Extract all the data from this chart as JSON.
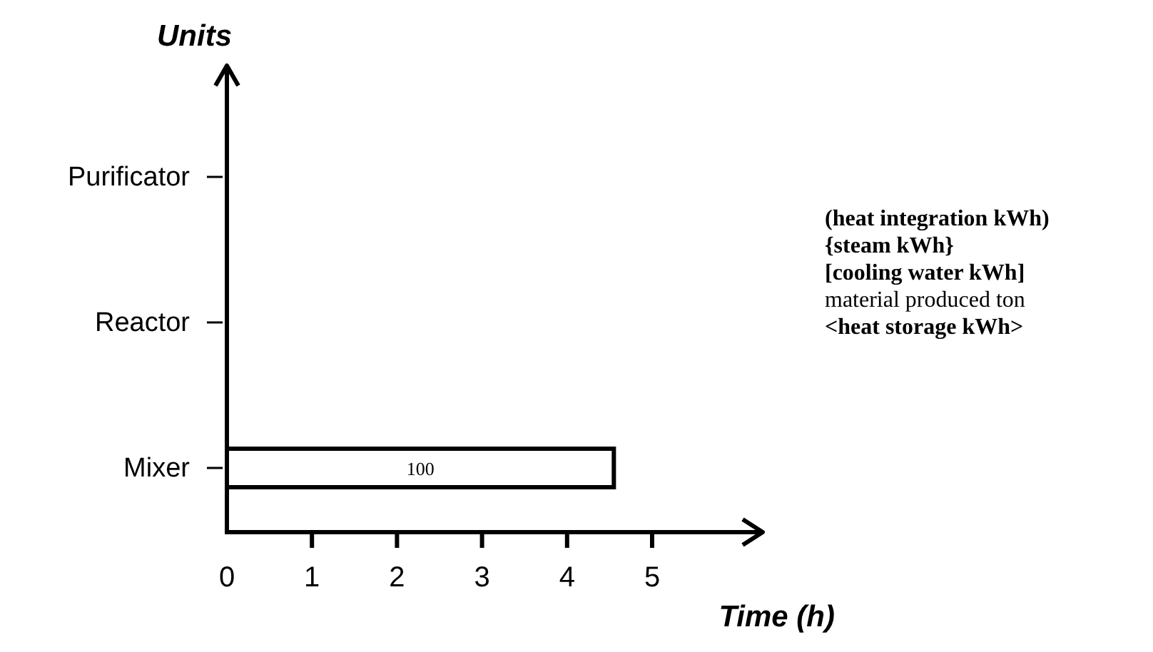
{
  "chart_data": {
    "type": "bar",
    "orientation": "horizontal",
    "ylabel": "Units",
    "xlabel": "Time (h)",
    "categories": [
      "Purificator",
      "Reactor",
      "Mixer"
    ],
    "values": [
      null,
      null,
      4.55
    ],
    "base": [
      null,
      null,
      0
    ],
    "color": "#ffffff",
    "xlim": [
      0,
      6.3
    ],
    "xticks": [
      0,
      1,
      2,
      3,
      4,
      5
    ],
    "annotations": [
      "(heat integration kWh)",
      "{steam kWh}",
      "[cooling water kWh]",
      "material produced ton",
      "<heat storage kWh>",
      "100"
    ]
  }
}
